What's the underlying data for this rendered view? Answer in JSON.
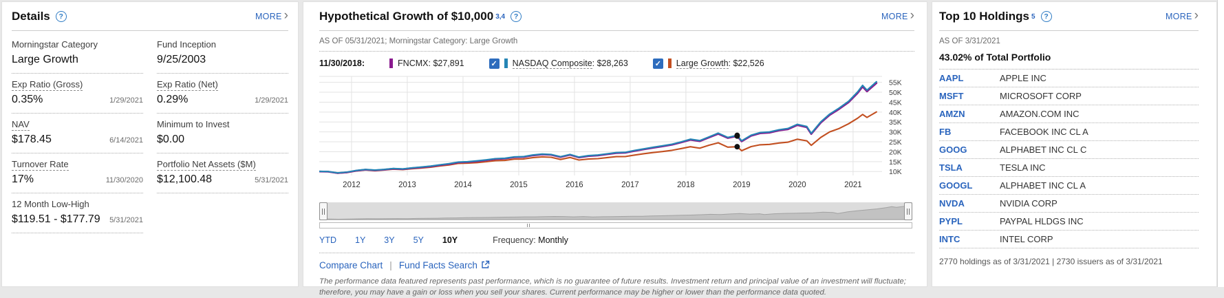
{
  "colors": {
    "link_blue": "#2a64bd",
    "help_blue": "#2e7bc4",
    "fncmx_purple": "#8a1a8e",
    "nasdaq_blue": "#2585b5",
    "large_growth_orange": "#c24f20",
    "checkbox_blue": "#2d6cbd",
    "marker_black": "#111111"
  },
  "details": {
    "title": "Details",
    "more_label": "MORE",
    "rows": [
      {
        "label": "Morningstar Category",
        "value": "Large Growth",
        "date": "",
        "dashed": false
      },
      {
        "label": "Fund Inception",
        "value": "9/25/2003",
        "date": "",
        "dashed": false
      },
      {
        "label": "Exp Ratio (Gross)",
        "value": "0.35%",
        "date": "1/29/2021",
        "dashed": true
      },
      {
        "label": "Exp Ratio (Net)",
        "value": "0.29%",
        "date": "1/29/2021",
        "dashed": true
      },
      {
        "label": "NAV",
        "value": "$178.45",
        "date": "6/14/2021",
        "dashed": true
      },
      {
        "label": "Minimum to Invest",
        "value": "$0.00",
        "date": "",
        "dashed": false
      },
      {
        "label": "Turnover Rate",
        "value": "17%",
        "date": "11/30/2020",
        "dashed": true
      },
      {
        "label": "Portfolio Net Assets ($M)",
        "value": "$12,100.48",
        "date": "5/31/2021",
        "dashed": true
      },
      {
        "label": "12 Month Low-High",
        "value": "$119.51 - $177.79",
        "date": "5/31/2021",
        "dashed": false
      }
    ]
  },
  "growth": {
    "title": "Hypothetical Growth of $10,000",
    "superscript": "3,4",
    "more_label": "MORE",
    "as_of": "AS OF 05/31/2021; Morningstar Category: Large Growth",
    "hover_date": "11/30/2018:",
    "legend": [
      {
        "name": "FNCMX",
        "value": "$27,891",
        "color": "#8a1a8e",
        "checkbox": false,
        "dashed": false
      },
      {
        "name": "NASDAQ Composite",
        "value": "$28,263",
        "color": "#2585b5",
        "checkbox": true,
        "dashed": true
      },
      {
        "name": "Large Growth",
        "value": "$22,526",
        "color": "#c24f20",
        "checkbox": true,
        "dashed": true
      }
    ],
    "periods": [
      {
        "label": "YTD",
        "active": false
      },
      {
        "label": "1Y",
        "active": false
      },
      {
        "label": "3Y",
        "active": false
      },
      {
        "label": "5Y",
        "active": false
      },
      {
        "label": "10Y",
        "active": true
      }
    ],
    "frequency_label": "Frequency:",
    "frequency_value": "Monthly",
    "links": {
      "compare": "Compare Chart",
      "separator": "|",
      "fund_facts": "Fund Facts Search"
    },
    "disclaimer": "The performance data featured represents past performance, which is no guarantee of future results. Investment return and principal value of an investment will fluctuate; therefore, you may have a gain or loss when you sell your shares. Current performance may be higher or lower than the performance data quoted."
  },
  "chart_data": {
    "type": "line",
    "title": "Hypothetical Growth of $10,000",
    "y_unit": "thousands of dollars",
    "xlim": [
      2011.42,
      2021.52
    ],
    "ylim": [
      8,
      58
    ],
    "grid": true,
    "legend_position": "top",
    "x_ticks": [
      2012,
      2013,
      2014,
      2015,
      2016,
      2017,
      2018,
      2019,
      2020,
      2021
    ],
    "y_ticks": [
      10,
      15,
      20,
      25,
      30,
      35,
      40,
      45,
      50,
      55
    ],
    "y_tick_suffix": "K",
    "x": [
      2011.42,
      2011.58,
      2011.75,
      2011.92,
      2012.08,
      2012.25,
      2012.42,
      2012.58,
      2012.75,
      2012.92,
      2013.08,
      2013.25,
      2013.42,
      2013.58,
      2013.75,
      2013.92,
      2014.08,
      2014.25,
      2014.42,
      2014.58,
      2014.75,
      2014.92,
      2015.08,
      2015.25,
      2015.42,
      2015.58,
      2015.75,
      2015.92,
      2016.08,
      2016.25,
      2016.42,
      2016.58,
      2016.75,
      2016.92,
      2017.08,
      2017.25,
      2017.42,
      2017.58,
      2017.75,
      2017.92,
      2018.08,
      2018.25,
      2018.42,
      2018.58,
      2018.75,
      2018.92,
      2019.0,
      2019.17,
      2019.33,
      2019.5,
      2019.67,
      2019.83,
      2020.0,
      2020.17,
      2020.25,
      2020.42,
      2020.58,
      2020.75,
      2020.92,
      2021.08,
      2021.17,
      2021.25,
      2021.42
    ],
    "series": [
      {
        "name": "Large Growth",
        "color": "#c24f20",
        "values": [
          10.0,
          9.9,
          9.15,
          9.5,
          10.25,
          10.8,
          10.4,
          10.75,
          11.2,
          10.95,
          11.4,
          11.75,
          12.2,
          12.8,
          13.3,
          14.1,
          14.2,
          14.5,
          14.95,
          15.5,
          15.6,
          16.25,
          16.3,
          17.0,
          17.4,
          17.2,
          16.1,
          17.1,
          15.8,
          16.3,
          16.5,
          17.0,
          17.5,
          17.6,
          18.3,
          19.0,
          19.6,
          20.1,
          20.7,
          21.6,
          22.5,
          21.8,
          23.3,
          24.5,
          22.3,
          22.53,
          20.5,
          22.6,
          23.5,
          23.7,
          24.4,
          24.8,
          26.3,
          25.5,
          23.2,
          27.2,
          30.0,
          31.7,
          34.1,
          36.9,
          38.8,
          37.3,
          40.1
        ]
      },
      {
        "name": "FNCMX",
        "color": "#8a1a8e",
        "values": [
          10.0,
          9.9,
          9.2,
          9.6,
          10.4,
          10.9,
          10.6,
          10.9,
          11.4,
          11.2,
          11.7,
          12.1,
          12.6,
          13.2,
          13.8,
          14.6,
          14.8,
          15.2,
          15.7,
          16.3,
          16.5,
          17.2,
          17.3,
          18.1,
          18.6,
          18.4,
          17.3,
          18.4,
          17.1,
          17.8,
          18.1,
          18.7,
          19.3,
          19.5,
          20.4,
          21.2,
          22.0,
          22.7,
          23.5,
          24.7,
          26.0,
          25.3,
          27.2,
          29.0,
          26.9,
          27.89,
          25.2,
          28.0,
          29.3,
          29.6,
          30.7,
          31.3,
          33.4,
          32.3,
          28.9,
          34.6,
          38.5,
          41.5,
          44.9,
          49.5,
          52.8,
          50.4,
          54.6
        ]
      },
      {
        "name": "NASDAQ Composite",
        "color": "#2585b5",
        "values": [
          10.13,
          10.03,
          9.32,
          9.72,
          10.54,
          11.04,
          10.74,
          11.04,
          11.55,
          11.35,
          11.85,
          12.26,
          12.76,
          13.37,
          13.98,
          14.79,
          14.99,
          15.4,
          15.9,
          16.51,
          16.71,
          17.42,
          17.53,
          18.34,
          18.84,
          18.64,
          17.53,
          18.64,
          17.32,
          18.03,
          18.34,
          18.94,
          19.55,
          19.75,
          20.67,
          21.48,
          22.29,
          23.0,
          23.81,
          25.02,
          26.34,
          25.63,
          27.55,
          29.38,
          27.25,
          28.26,
          25.53,
          28.36,
          29.68,
          29.98,
          31.1,
          31.71,
          33.83,
          32.72,
          29.28,
          35.05,
          39.0,
          42.04,
          45.48,
          50.14,
          53.49,
          51.06,
          55.31
        ]
      }
    ],
    "marker": {
      "date": "11/30/2018",
      "x": 2018.92,
      "values": {
        "FNCMX": 27.891,
        "NASDAQ Composite": 28.263,
        "Large Growth": 22.526
      }
    }
  },
  "holdings": {
    "title": "Top 10 Holdings",
    "superscript": "5",
    "more_label": "MORE",
    "as_of": "AS OF 3/31/2021",
    "total": "43.02% of Total Portfolio",
    "rows": [
      {
        "ticker": "AAPL",
        "name": "APPLE INC"
      },
      {
        "ticker": "MSFT",
        "name": "MICROSOFT CORP"
      },
      {
        "ticker": "AMZN",
        "name": "AMAZON.COM INC"
      },
      {
        "ticker": "FB",
        "name": "FACEBOOK INC CL A"
      },
      {
        "ticker": "GOOG",
        "name": "ALPHABET INC CL C"
      },
      {
        "ticker": "TSLA",
        "name": "TESLA INC"
      },
      {
        "ticker": "GOOGL",
        "name": "ALPHABET INC CL A"
      },
      {
        "ticker": "NVDA",
        "name": "NVIDIA CORP"
      },
      {
        "ticker": "PYPL",
        "name": "PAYPAL HLDGS INC"
      },
      {
        "ticker": "INTC",
        "name": "INTEL CORP"
      }
    ],
    "footer": "2770 holdings as of 3/31/2021 | 2730 issuers as of 3/31/2021"
  }
}
